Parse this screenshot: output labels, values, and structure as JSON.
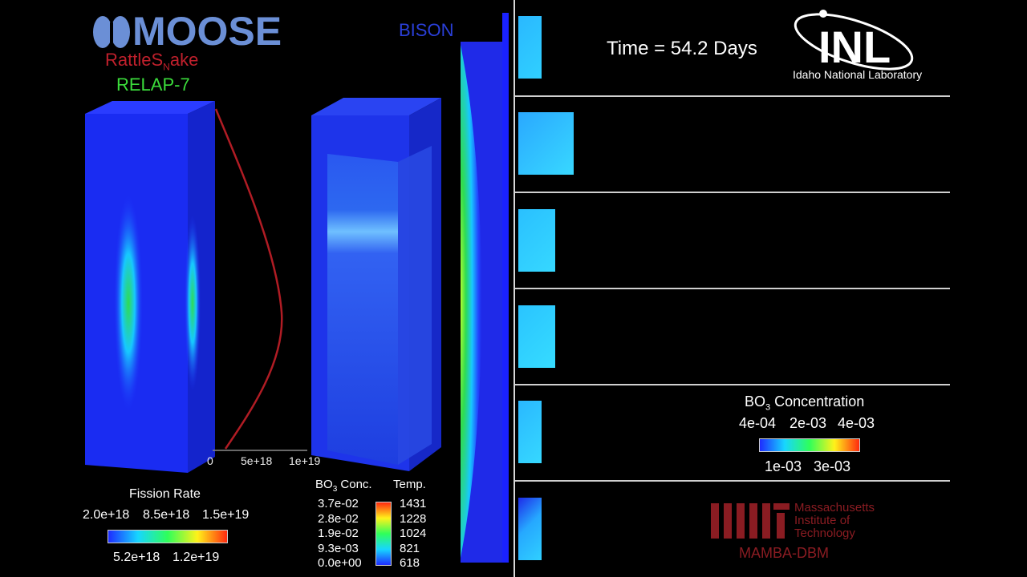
{
  "logos": {
    "moose": "MOOSE",
    "rattlesnake_main": "RattleS",
    "rattlesnake_sub": "N",
    "rattlesnake_end": "ake",
    "relap": "RELAP-7",
    "bison": "BISON",
    "inl_mark": "INL",
    "inl_name": "Idaho National Laboratory",
    "mit_mark": "MIT",
    "mit_line1": "Massachusetts",
    "mit_line2": "Institute of",
    "mit_line3": "Technology",
    "mamba": "MAMBA-DBM"
  },
  "time_label": "Time = 54.2 Days",
  "fission_plot": {
    "ticks": [
      "0",
      "5e+18",
      "1e+19"
    ]
  },
  "fission_legend": {
    "title": "Fission Rate",
    "top_labels": [
      "2.0e+18",
      "8.5e+18",
      "1.5e+19"
    ],
    "bottom_labels": [
      "5.2e+18",
      "1.2e+19"
    ],
    "colors": [
      "#1e2cff",
      "#17d6ff",
      "#2fff5a",
      "#fff21a",
      "#ff2a10"
    ]
  },
  "bo3_temp_legend": {
    "bo3_title_main": "BO",
    "bo3_title_sub": "3",
    "bo3_title_end": " Conc.",
    "temp_title": "Temp.",
    "bo3_values": [
      "3.7e-02",
      "2.8e-02",
      "1.9e-02",
      "9.3e-03",
      "0.0e+00"
    ],
    "temp_values": [
      "1431",
      "1228",
      "1024",
      "821",
      "618"
    ]
  },
  "bo3_concentration_legend": {
    "title_main": "BO",
    "title_sub": "3",
    "title_end": " Concentration",
    "top_labels": [
      "4e-04",
      "2e-03",
      "4e-03"
    ],
    "bottom_labels": [
      "1e-03",
      "3e-03"
    ]
  },
  "colors": {
    "moose_blue": "#6b8fd6",
    "rattlesnake_red": "#c0202c",
    "relap_green": "#3bdc3b",
    "bison_blue": "#2a3fd8",
    "mit_red": "#8a1c22",
    "curve_red": "#b01c24"
  }
}
